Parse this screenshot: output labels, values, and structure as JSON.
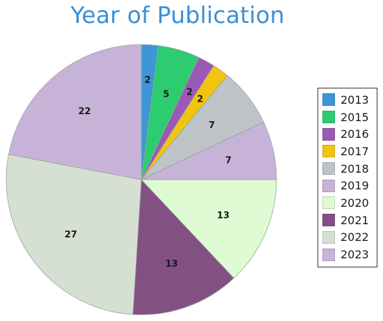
{
  "chart_data": {
    "type": "pie",
    "title": "Year of Publication",
    "legend_position": "right",
    "slices": [
      {
        "label": "2013",
        "value": 2,
        "color": "#3b97d6"
      },
      {
        "label": "2015",
        "value": 5,
        "color": "#2ecc71"
      },
      {
        "label": "2016",
        "value": 2,
        "color": "#9b59b6"
      },
      {
        "label": "2017",
        "value": 2,
        "color": "#f1c40f"
      },
      {
        "label": "2018",
        "value": 7,
        "color": "#bdc3c7"
      },
      {
        "label": "2019",
        "value": 7,
        "color": "#c8b3d8"
      },
      {
        "label": "2020",
        "value": 13,
        "color": "#defbd3"
      },
      {
        "label": "2021",
        "value": 13,
        "color": "#835083"
      },
      {
        "label": "2022",
        "value": 27,
        "color": "#d5e0d3"
      },
      {
        "label": "2023",
        "value": 22,
        "color": "#c8b3d8"
      }
    ]
  }
}
